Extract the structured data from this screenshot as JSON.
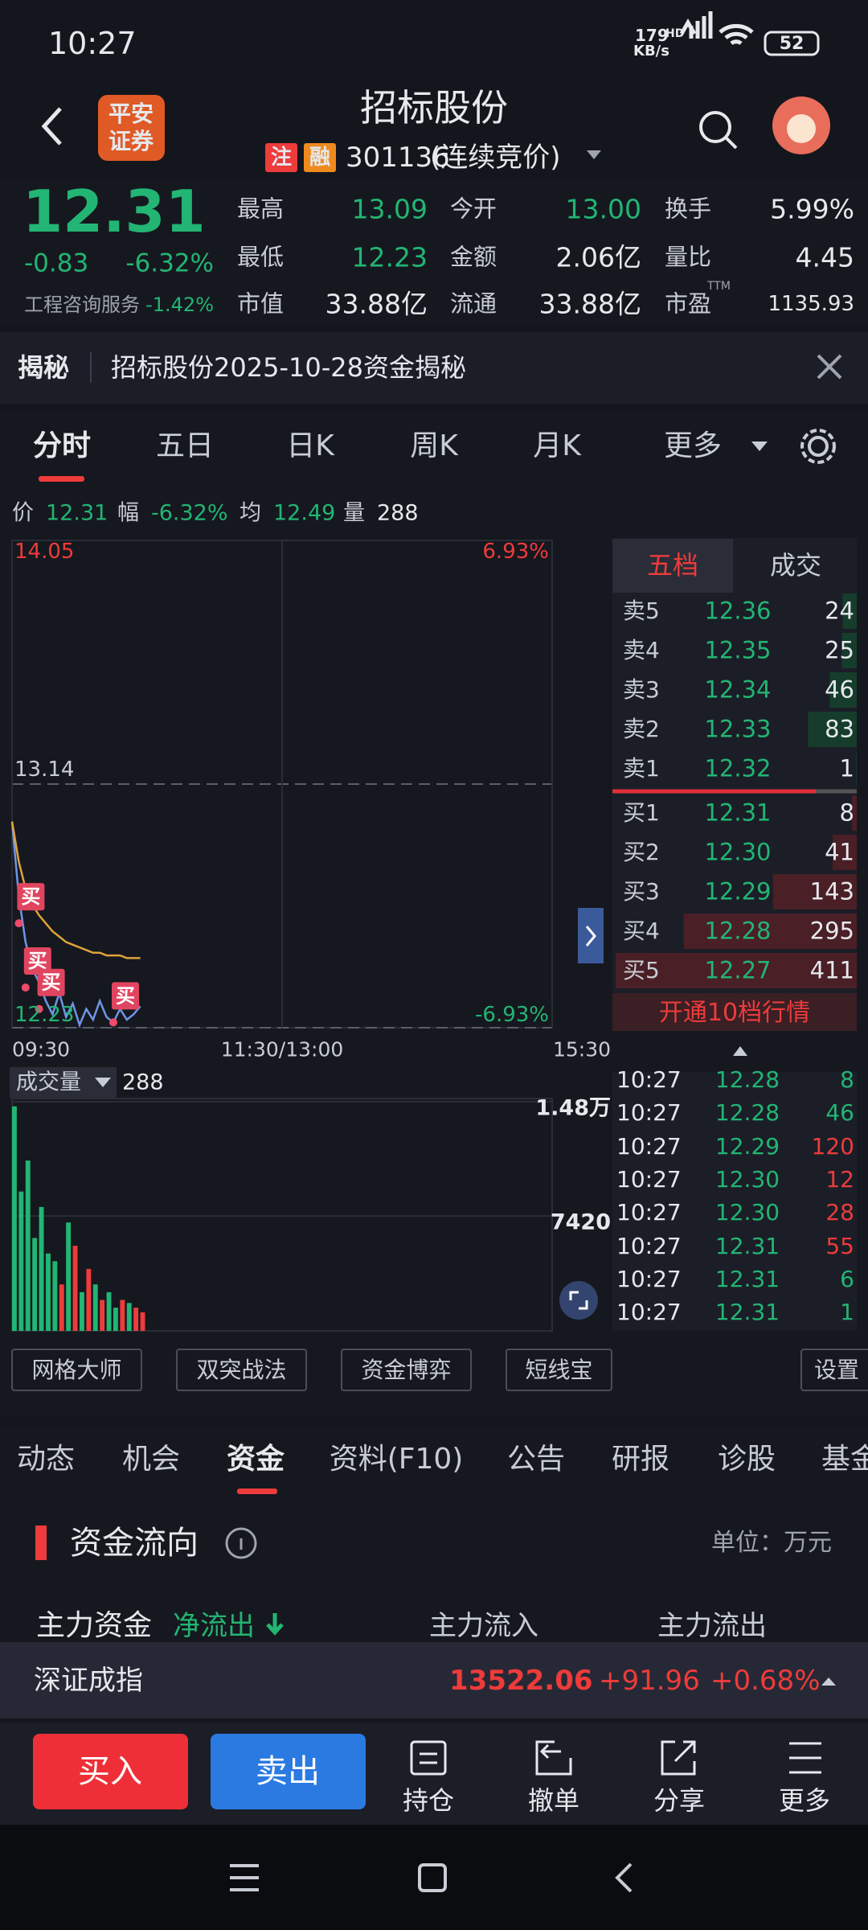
{
  "status_bar": {
    "time": "10:27",
    "speed": "179",
    "speed_unit": "KB/s",
    "network": "HD",
    "battery": "52"
  },
  "header": {
    "logo": [
      "平安",
      "证券"
    ],
    "title": "招标股份",
    "tags": [
      "注",
      "融"
    ],
    "code": "301136",
    "mode": "(连续竞价)"
  },
  "quote": {
    "price": "12.31",
    "change": "-0.83",
    "change_pct": "-6.32%",
    "sector": "工程咨询服务",
    "sector_change": "-1.42%",
    "stats": [
      [
        {
          "label": "最高",
          "value": "13.09",
          "color": "#22b573"
        },
        {
          "label": "今开",
          "value": "13.00",
          "color": "#22b573"
        },
        {
          "label": "换手",
          "value": "5.99%"
        }
      ],
      [
        {
          "label": "最低",
          "value": "12.23",
          "color": "#22b573"
        },
        {
          "label": "金额",
          "value": "2.06亿"
        },
        {
          "label": "量比",
          "value": "4.45"
        }
      ],
      [
        {
          "label": "市值",
          "value": "33.88亿"
        },
        {
          "label": "流通",
          "value": "33.88亿"
        },
        {
          "label": "市盈",
          "value": "1135.93",
          "sup": "TTM"
        }
      ]
    ]
  },
  "notice": {
    "tag": "揭秘",
    "text": "招标股份2025-10-28资金揭秘"
  },
  "chart_tabs": [
    "分时",
    "五日",
    "日K",
    "周K",
    "月K",
    "更多"
  ],
  "info_row": [
    {
      "label": "价",
      "value": "12.31"
    },
    {
      "label": "幅",
      "value": "-6.32%"
    },
    {
      "label": "均",
      "value": "12.49"
    },
    {
      "label": "量",
      "value": "288"
    }
  ],
  "chart_data": [
    {
      "type": "line",
      "x": [
        0,
        3,
        6,
        9,
        12,
        15,
        18,
        21,
        24,
        27,
        30,
        33,
        36,
        39,
        42,
        45,
        48,
        51,
        54,
        57
      ],
      "xlim": [
        0,
        240
      ],
      "xticks": [
        {
          "value": 0,
          "label": "09:30"
        },
        {
          "value": 120,
          "label": "11:30/13:00"
        },
        {
          "value": 240,
          "label": "15:30"
        }
      ],
      "ylim": [
        12.23,
        14.05
      ],
      "yticks": [
        14.05,
        13.14,
        12.23
      ],
      "pct_labels": [
        "6.93%",
        "-6.93%"
      ],
      "series": [
        {
          "color": "#6f95e8",
          "values": [
            13.0,
            12.72,
            12.55,
            12.45,
            12.4,
            12.33,
            12.28,
            12.36,
            12.27,
            12.32,
            12.24,
            12.3,
            12.26,
            12.33,
            12.27,
            12.25,
            12.3,
            12.26,
            12.28,
            12.31
          ]
        },
        {
          "color": "#e0a23a",
          "values": [
            13.0,
            12.85,
            12.75,
            12.69,
            12.65,
            12.62,
            12.59,
            12.57,
            12.55,
            12.54,
            12.53,
            12.52,
            12.51,
            12.51,
            12.5,
            12.5,
            12.5,
            12.49,
            12.49,
            12.49
          ]
        }
      ],
      "annotations": [
        {
          "x": 3,
          "y": 12.62,
          "text": "买"
        },
        {
          "x": 6,
          "y": 12.38,
          "text": "买"
        },
        {
          "x": 12,
          "y": 12.3,
          "text": "买"
        },
        {
          "x": 45,
          "y": 12.25,
          "text": "买"
        }
      ]
    },
    {
      "type": "bar",
      "label": "成交量",
      "current": "288",
      "x": [
        0,
        3,
        6,
        9,
        12,
        15,
        18,
        21,
        24,
        27,
        30,
        33,
        36,
        39,
        42,
        45,
        48,
        51,
        54,
        57
      ],
      "xlim": [
        0,
        240
      ],
      "ylim": [
        0,
        14800
      ],
      "yticks": [
        {
          "value": 14800,
          "label": "1.48万"
        },
        7420
      ],
      "values": [
        14500,
        9000,
        11000,
        6000,
        8000,
        5000,
        4500,
        3000,
        7000,
        5500,
        2500,
        4000,
        3000,
        2000,
        2500,
        1500,
        2000,
        1800,
        1500,
        1200
      ],
      "colors": {
        "up": "#ee3b3b",
        "down": "#22b573"
      }
    }
  ],
  "order_book": {
    "tabs": [
      "五档",
      "成交"
    ],
    "asks": [
      {
        "label": "卖5",
        "price": "12.36",
        "volume": 24
      },
      {
        "label": "卖4",
        "price": "12.35",
        "volume": 25
      },
      {
        "label": "卖3",
        "price": "12.34",
        "volume": 46
      },
      {
        "label": "卖2",
        "price": "12.33",
        "volume": 83
      },
      {
        "label": "卖1",
        "price": "12.32",
        "volume": 1
      }
    ],
    "bids": [
      {
        "label": "买1",
        "price": "12.31",
        "volume": 8
      },
      {
        "label": "买2",
        "price": "12.30",
        "volume": 41
      },
      {
        "label": "买3",
        "price": "12.29",
        "volume": 143
      },
      {
        "label": "买4",
        "price": "12.28",
        "volume": 295
      },
      {
        "label": "买5",
        "price": "12.27",
        "volume": 411
      }
    ],
    "button": "开通10档行情"
  },
  "trades": [
    {
      "time": "10:27",
      "price": "12.28",
      "volume": 8,
      "color": "#22b573"
    },
    {
      "time": "10:27",
      "price": "12.28",
      "volume": 46,
      "color": "#22b573"
    },
    {
      "time": "10:27",
      "price": "12.29",
      "volume": 120,
      "color": "#ee3b3b"
    },
    {
      "time": "10:27",
      "price": "12.30",
      "volume": 12,
      "color": "#ee3b3b"
    },
    {
      "time": "10:27",
      "price": "12.30",
      "volume": 28,
      "color": "#ee3b3b"
    },
    {
      "time": "10:27",
      "price": "12.31",
      "volume": 55,
      "color": "#ee3b3b"
    },
    {
      "time": "10:27",
      "price": "12.31",
      "volume": 6,
      "color": "#22b573"
    },
    {
      "time": "10:27",
      "price": "12.31",
      "volume": 1,
      "color": "#22b573"
    }
  ],
  "tools": [
    "网格大师",
    "双突战法",
    "资金博弈",
    "短线宝",
    "设置"
  ],
  "section_tabs": [
    "动态",
    "机会",
    "资金",
    "资料(F10)",
    "公告",
    "研报",
    "诊股",
    "基金"
  ],
  "fund_flow": {
    "title": "资金流向",
    "unit": "单位：万元",
    "row_label": "主力资金",
    "direction": "净流出",
    "col1": "主力流入",
    "col2": "主力流出"
  },
  "index_bar": {
    "name": "深证成指",
    "value": "13522.06",
    "change": "+91.96",
    "change_pct": "+0.68%"
  },
  "actions": {
    "buy": "买入",
    "sell": "卖出",
    "items": [
      "持仓",
      "撤单",
      "分享",
      "更多"
    ]
  }
}
